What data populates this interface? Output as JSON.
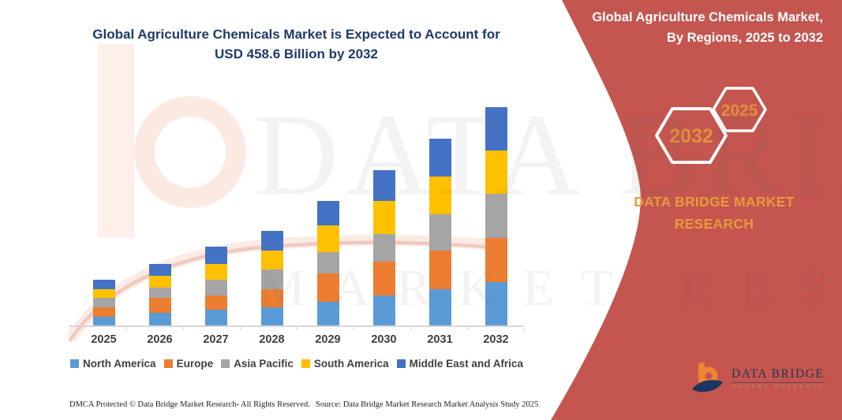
{
  "title": {
    "line1": "Global Agriculture Chemicals Market is Expected to Account for",
    "line2": "USD 458.6 Billion by 2032"
  },
  "chart_data": {
    "type": "bar",
    "stacked": true,
    "categories": [
      "2025",
      "2026",
      "2027",
      "2028",
      "2029",
      "2030",
      "2031",
      "2032"
    ],
    "series": [
      {
        "name": "North America",
        "color": "#5B9BD5",
        "values": [
          18.2,
          26.5,
          33.1,
          38.1,
          49.7,
          62.9,
          76.2,
          91.1
        ]
      },
      {
        "name": "Europe",
        "color": "#ED7D31",
        "values": [
          19.9,
          31.5,
          29.8,
          38.1,
          59.6,
          71.2,
          81.1,
          92.7
        ]
      },
      {
        "name": "Asia Pacific",
        "color": "#A5A5A5",
        "values": [
          19.9,
          21.5,
          33.1,
          41.4,
          44.7,
          57.9,
          76.2,
          92.7
        ]
      },
      {
        "name": "South America",
        "color": "#FFC000",
        "values": [
          18.2,
          24.8,
          33.1,
          39.7,
          56.3,
          69.5,
          79.5,
          91.1
        ]
      },
      {
        "name": "Middle East and Africa",
        "color": "#4472C4",
        "values": [
          19.9,
          24.8,
          36.4,
          41.4,
          51.3,
          64.6,
          79.5,
          91.0
        ]
      }
    ],
    "totals": [
      96.1,
      129.1,
      165.5,
      198.7,
      261.6,
      326.1,
      392.5,
      458.6
    ],
    "unit": "USD Billion (values estimated from bar heights; 2032 total anchored to USD 458.6 Billion stated in title)",
    "title": "Global Agriculture Chemicals Market is Expected to Account for USD 458.6 Billion by 2032",
    "xlabel": "",
    "ylabel": "",
    "ylim": [
      0,
      485
    ],
    "grid": false,
    "y_axis_shown": false,
    "legend_position": "bottom"
  },
  "sidebar": {
    "title_line1": "Global Agriculture Chemicals Market,",
    "title_line2": "By Regions, 2025 to 2032",
    "hexagon_back_label": "2032",
    "hexagon_front_label": "2025",
    "brand_line1": "DATA BRIDGE MARKET",
    "brand_line2": "RESEARCH",
    "logo_text": "DATA BRIDGE",
    "logo_subtext": "MARKET RESEARCH",
    "panel_color": "#C4564F",
    "accent_text_color": "#E08F3C"
  },
  "footer": {
    "left": "DMCA Protected © Data Bridge Market Research-  All Rights Reserved.",
    "right": "Source: Data Bridge Market Research  Market Analysis Study 2025"
  },
  "watermark": {
    "line1": "DATA BRIDGE",
    "line2": "MARKET RESEARCH"
  }
}
